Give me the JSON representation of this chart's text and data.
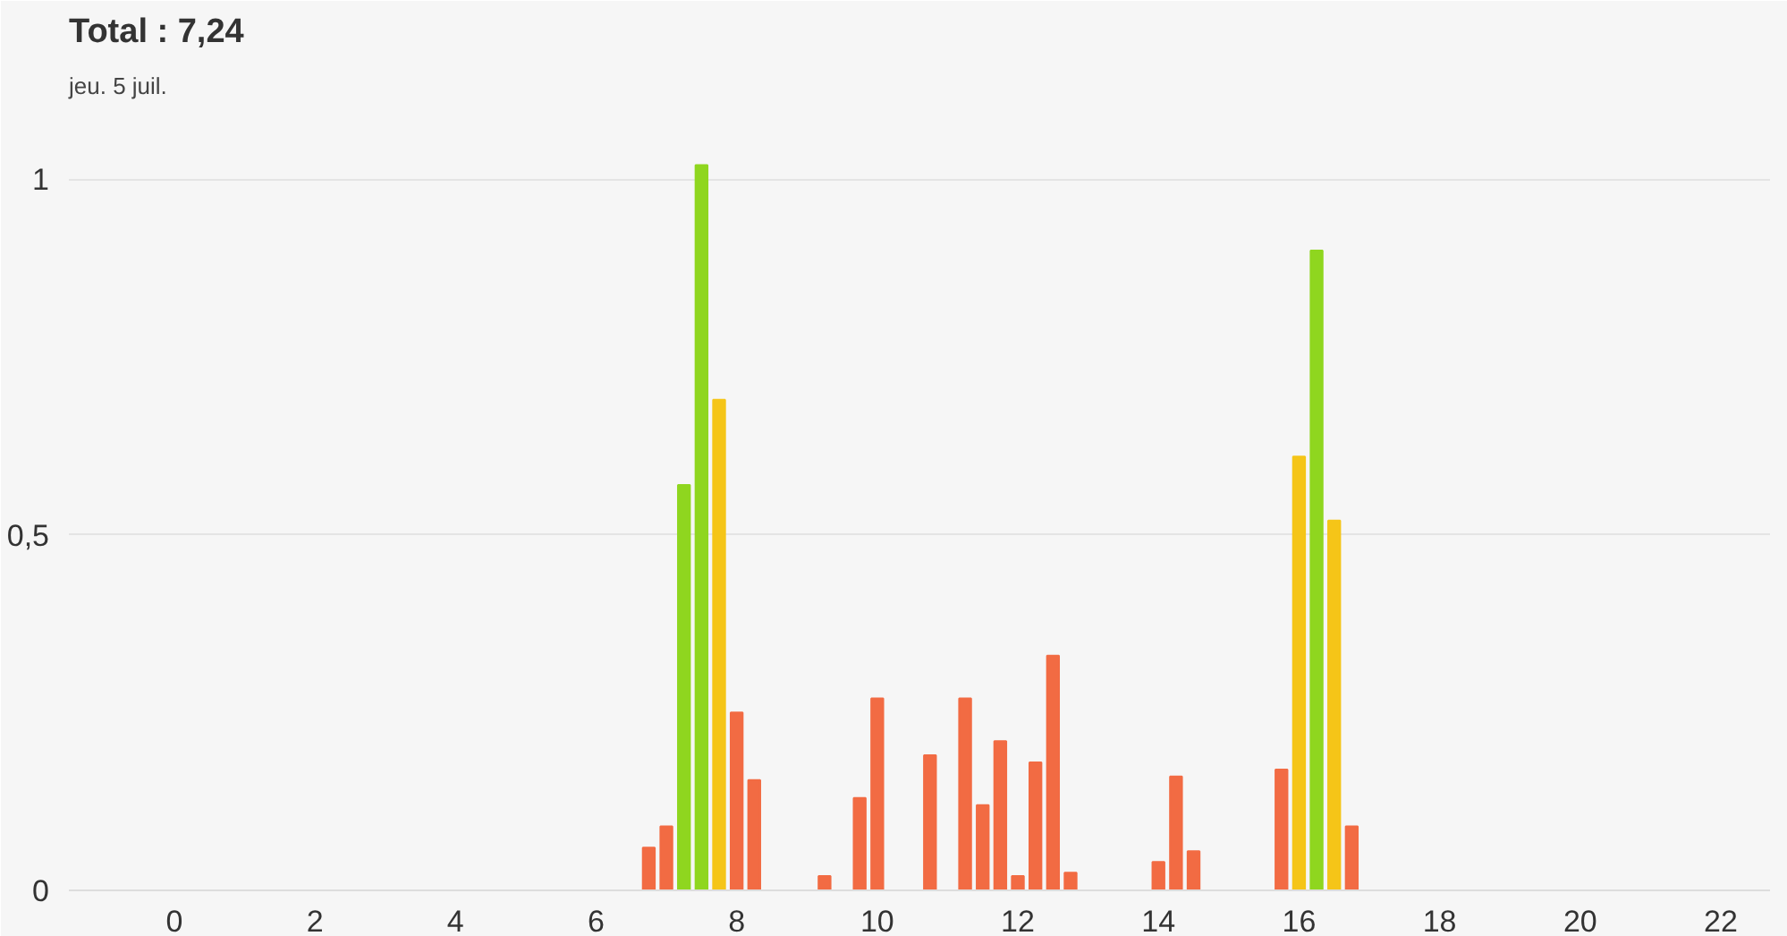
{
  "chart_data": {
    "type": "bar",
    "title": "Total : 7,24",
    "subtitle": "jeu. 5 juil.",
    "x": [
      6.75,
      7.0,
      7.25,
      7.5,
      7.75,
      8.0,
      8.25,
      9.25,
      9.75,
      10.0,
      10.75,
      11.25,
      11.5,
      11.75,
      12.0,
      12.25,
      12.5,
      12.75,
      14.0,
      14.25,
      14.5,
      15.75,
      16.0,
      16.25,
      16.5,
      16.75
    ],
    "values": [
      0.06,
      0.09,
      0.57,
      1.02,
      0.69,
      0.25,
      0.155,
      0.02,
      0.13,
      0.27,
      0.19,
      0.27,
      0.12,
      0.21,
      0.02,
      0.18,
      0.33,
      0.025,
      0.04,
      0.16,
      0.055,
      0.17,
      0.61,
      0.9,
      0.52,
      0.09
    ],
    "colors": [
      "#f26b43",
      "#f26b43",
      "#8fd61f",
      "#8fd61f",
      "#f5c518",
      "#f26b43",
      "#f26b43",
      "#f26b43",
      "#f26b43",
      "#f26b43",
      "#f26b43",
      "#f26b43",
      "#f26b43",
      "#f26b43",
      "#f26b43",
      "#f26b43",
      "#f26b43",
      "#f26b43",
      "#f26b43",
      "#f26b43",
      "#f26b43",
      "#f26b43",
      "#f5c518",
      "#8fd61f",
      "#f5c518",
      "#f26b43"
    ],
    "xlim": [
      -1.5,
      22.7
    ],
    "ylim": [
      0,
      1.1
    ],
    "xticks": [
      0,
      2,
      4,
      6,
      8,
      10,
      12,
      14,
      16,
      18,
      20,
      22
    ],
    "yticks": [
      0,
      {
        "value": 0.5,
        "label": "0,5"
      },
      1
    ],
    "grid": "y"
  }
}
